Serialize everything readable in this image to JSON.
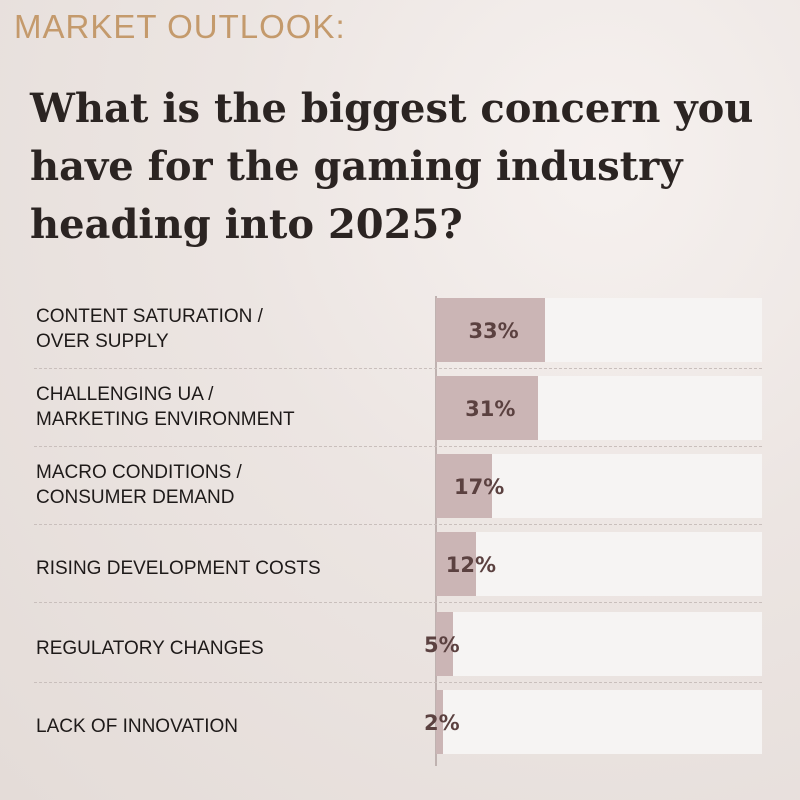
{
  "header": {
    "eyebrow": "MARKET OUTLOOK:",
    "title": "What is the biggest concern you have for the gaming industry heading into 2025?"
  },
  "colors": {
    "bar": "#cbb5b5",
    "track": "#f6f4f3",
    "value_text": "#5b4140",
    "eyebrow": "#c49a6c"
  },
  "chart_data": {
    "type": "bar",
    "orientation": "horizontal",
    "categories": [
      "CONTENT SATURATION /\nOVER SUPPLY",
      "CHALLENGING UA /\nMARKETING ENVIRONMENT",
      "MACRO CONDITIONS /\nCONSUMER DEMAND",
      "RISING DEVELOPMENT COSTS",
      "REGULATORY CHANGES",
      "LACK OF INNOVATION"
    ],
    "values": [
      33,
      31,
      17,
      12,
      5,
      2
    ],
    "value_labels": [
      "33%",
      "31%",
      "17%",
      "12%",
      "5%",
      "2%"
    ],
    "xlim": [
      0,
      100
    ],
    "grid": false,
    "legend": "none"
  }
}
